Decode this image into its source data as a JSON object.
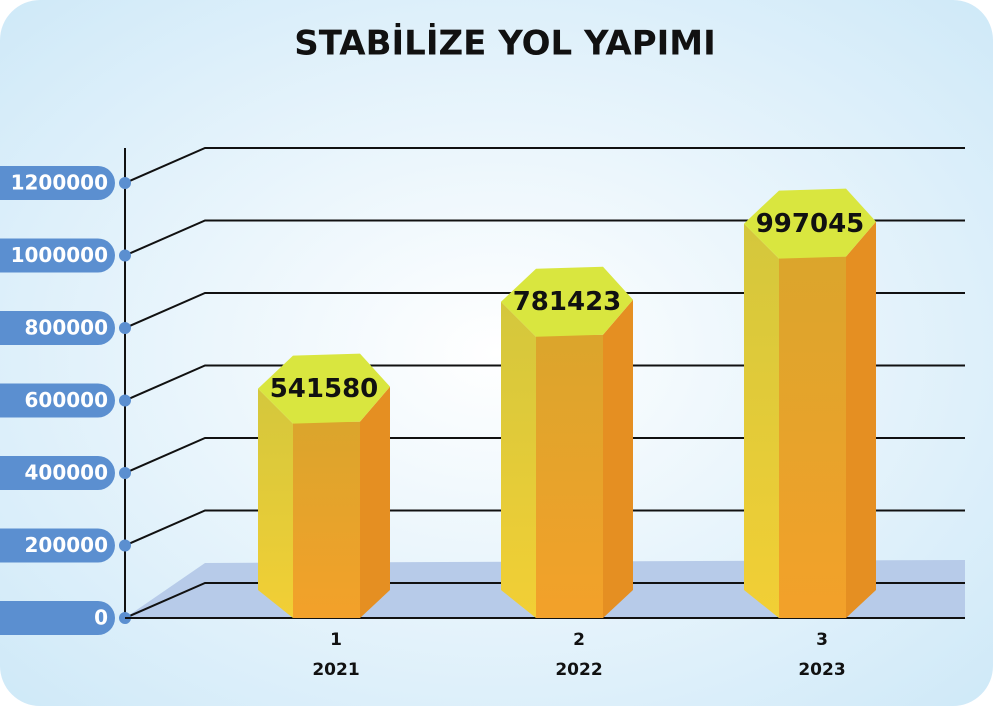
{
  "chart_data": {
    "type": "bar3d",
    "title": "STABİLİZE YOL YAPIMI",
    "categories": [
      "1",
      "2",
      "3"
    ],
    "sublabels": [
      "2021",
      "2022",
      "2023"
    ],
    "values": [
      541580,
      781423,
      997045
    ],
    "ylim": [
      0,
      1200000
    ],
    "yticks": [
      0,
      200000,
      400000,
      600000,
      800000,
      1000000,
      1200000
    ],
    "grid": true,
    "color": "#e2aa2a"
  }
}
